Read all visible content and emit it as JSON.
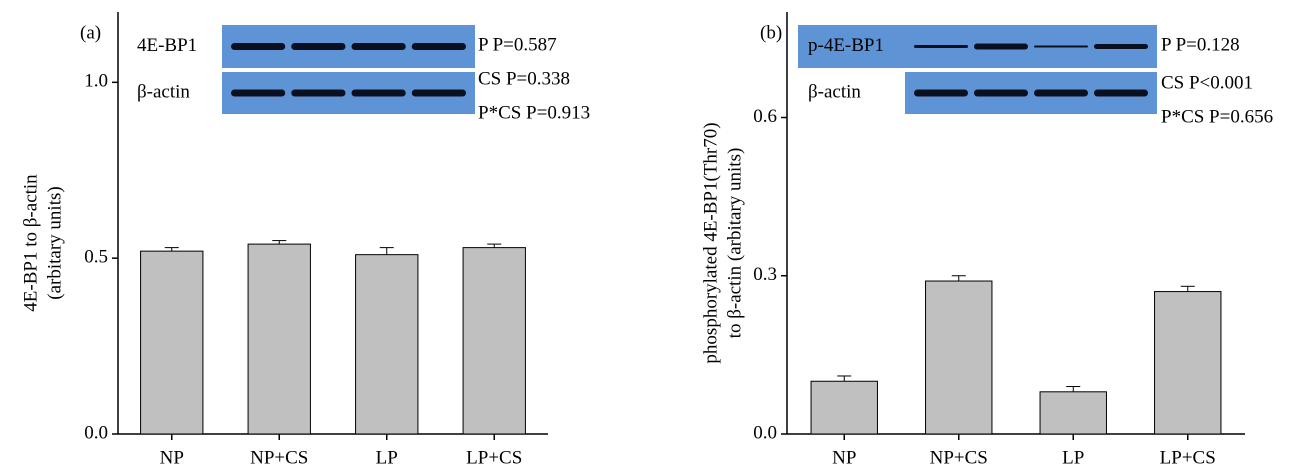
{
  "chart_data": [
    {
      "type": "bar",
      "panel_label": "(a)",
      "ylabel": [
        "4E-BP1 to β-actin",
        "(arbitary units)"
      ],
      "categories": [
        "NP",
        "NP+CS",
        "LP",
        "LP+CS"
      ],
      "values": [
        0.52,
        0.54,
        0.51,
        0.53
      ],
      "errors": [
        0.01,
        0.01,
        0.02,
        0.01
      ],
      "color": "#c0c0c0",
      "ylim": [
        0,
        1.2
      ],
      "yticks": [
        {
          "value": 0,
          "label": "0.0"
        },
        {
          "value": 0.5,
          "label": "0.5"
        },
        {
          "value": 1,
          "label": "1.0"
        }
      ],
      "blot_labels": [
        "4E-BP1",
        "β-actin"
      ],
      "annotations": [
        "P  P=0.587",
        "CS  P=0.338",
        "P*CS  P=0.913"
      ]
    },
    {
      "type": "bar",
      "panel_label": "(b)",
      "ylabel": [
        "phosphorylated 4E-BP1(Thr70)",
        "to β-actin (arbitary units)"
      ],
      "categories": [
        "NP",
        "NP+CS",
        "LP",
        "LP+CS"
      ],
      "values": [
        0.1,
        0.29,
        0.08,
        0.27
      ],
      "errors": [
        0.01,
        0.01,
        0.01,
        0.01
      ],
      "color": "#c0c0c0",
      "ylim": [
        0,
        0.8
      ],
      "yticks": [
        {
          "value": 0,
          "label": "0.0"
        },
        {
          "value": 0.3,
          "label": "0.3"
        },
        {
          "value": 0.6,
          "label": "0.6"
        }
      ],
      "blot_labels": [
        "p-4E-BP1",
        "β-actin"
      ],
      "annotations": [
        "P  P=0.128",
        "CS  P<0.001",
        "P*CS  P=0.656"
      ]
    }
  ]
}
